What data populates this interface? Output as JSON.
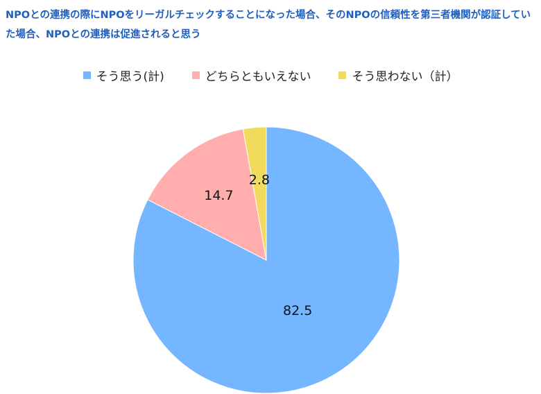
{
  "chart_data": {
    "type": "pie",
    "title": "NPOとの連携の際にNPOをリーガルチェックすることになった場合、そのNPOの信頼性を第三者機関が認証していた場合、NPOとの連携は促進されると思う",
    "legend_position": "top",
    "slices": [
      {
        "label": "そう思う(計)",
        "value": 82.5,
        "value_label": "82.5",
        "color": "#74b6ff"
      },
      {
        "label": "どちらともいえない",
        "value": 14.7,
        "value_label": "14.7",
        "color": "#ffadad"
      },
      {
        "label": "そう思わない（計）",
        "value": 2.8,
        "value_label": "2.8",
        "color": "#f2db5c"
      }
    ]
  }
}
